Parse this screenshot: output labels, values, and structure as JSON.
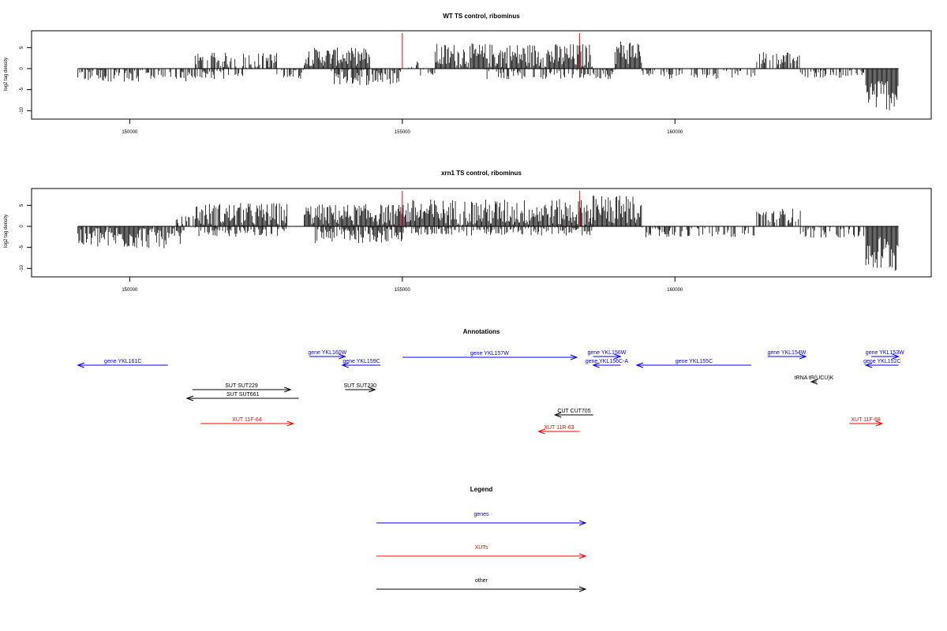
{
  "chart_data": [
    {
      "type": "bar",
      "title": "WT TS control, ribominus",
      "ylabel": "log2 tag density",
      "xlim": [
        148200,
        164700
      ],
      "ylim": [
        -12,
        9
      ],
      "x_ticks": [
        150000,
        155000,
        160000
      ],
      "y_ticks": [
        5,
        0,
        -5,
        -10
      ],
      "markers": [
        155000,
        158250
      ],
      "segments": [
        {
          "from": 149050,
          "to": 152100,
          "mean": -1.5,
          "amp": 1.6
        },
        {
          "from": 151200,
          "to": 152700,
          "mean": 2.0,
          "amp": 1.8
        },
        {
          "from": 152700,
          "to": 153200,
          "mean": -1.0,
          "amp": 1.5
        },
        {
          "from": 153200,
          "to": 154400,
          "mean": 2.8,
          "amp": 2.2
        },
        {
          "from": 153700,
          "to": 155000,
          "mean": -1.5,
          "amp": 2.5
        },
        {
          "from": 155100,
          "to": 155300,
          "mean": 1.0,
          "amp": 1.0
        },
        {
          "from": 155300,
          "to": 155600,
          "mean": -1.0,
          "amp": 1.0
        },
        {
          "from": 155600,
          "to": 158500,
          "mean": 3.0,
          "amp": 3.0
        },
        {
          "from": 156500,
          "to": 158500,
          "mean": -1.0,
          "amp": 1.5
        },
        {
          "from": 158500,
          "to": 158900,
          "mean": -1.0,
          "amp": 1.5
        },
        {
          "from": 158900,
          "to": 159400,
          "mean": 4.0,
          "amp": 3.0
        },
        {
          "from": 159400,
          "to": 161500,
          "mean": -1.0,
          "amp": 1.5
        },
        {
          "from": 161500,
          "to": 162300,
          "mean": 2.5,
          "amp": 1.5
        },
        {
          "from": 162300,
          "to": 163500,
          "mean": -1.0,
          "amp": 1.2
        },
        {
          "from": 163500,
          "to": 164100,
          "mean": -6.0,
          "amp": 4.0
        }
      ]
    },
    {
      "type": "bar",
      "title": "xrn1 TS control, ribominus",
      "ylabel": "log2 tag density",
      "xlim": [
        148200,
        164700
      ],
      "ylim": [
        -12,
        9
      ],
      "x_ticks": [
        150000,
        155000,
        160000
      ],
      "y_ticks": [
        5,
        0,
        -5,
        -10
      ],
      "markers": [
        155000,
        158250
      ],
      "segments": [
        {
          "from": 149050,
          "to": 151000,
          "mean": -2.5,
          "amp": 2.8
        },
        {
          "from": 150800,
          "to": 151200,
          "mean": 1.5,
          "amp": 1.0
        },
        {
          "from": 151200,
          "to": 152900,
          "mean": 2.8,
          "amp": 2.8
        },
        {
          "from": 151200,
          "to": 152900,
          "mean": -1.0,
          "amp": 1.5
        },
        {
          "from": 153200,
          "to": 155000,
          "mean": 2.8,
          "amp": 2.5
        },
        {
          "from": 153400,
          "to": 155000,
          "mean": -1.5,
          "amp": 2.5
        },
        {
          "from": 155000,
          "to": 158500,
          "mean": 3.3,
          "amp": 3.2
        },
        {
          "from": 155000,
          "to": 158500,
          "mean": -1.0,
          "amp": 1.2
        },
        {
          "from": 158500,
          "to": 159400,
          "mean": 4.0,
          "amp": 3.5
        },
        {
          "from": 159400,
          "to": 161500,
          "mean": -1.0,
          "amp": 1.6
        },
        {
          "from": 161500,
          "to": 162300,
          "mean": 2.5,
          "amp": 1.8
        },
        {
          "from": 162300,
          "to": 163500,
          "mean": -1.2,
          "amp": 1.5
        },
        {
          "from": 163500,
          "to": 164100,
          "mean": -6.5,
          "amp": 4.5
        }
      ]
    }
  ],
  "annotations": {
    "title": "Annotations",
    "features": [
      {
        "label": "gene YKL161C",
        "from": 150700,
        "to": 149050,
        "kind": "gene"
      },
      {
        "label": "gene YKL160W",
        "from": 153300,
        "to": 153950,
        "kind": "gene"
      },
      {
        "label": "gene YKL159C",
        "from": 154600,
        "to": 153900,
        "kind": "gene"
      },
      {
        "label": "gene YKL157W",
        "from": 155000,
        "to": 158200,
        "kind": "gene"
      },
      {
        "label": "gene YKL156W",
        "from": 158500,
        "to": 159000,
        "kind": "gene"
      },
      {
        "label": "gene YKL156C-A",
        "from": 159000,
        "to": 158500,
        "kind": "gene"
      },
      {
        "label": "gene YKL155C",
        "from": 161400,
        "to": 159300,
        "kind": "gene"
      },
      {
        "label": "gene YKL154W",
        "from": 161700,
        "to": 162400,
        "kind": "gene"
      },
      {
        "label": "gene YKL153W",
        "from": 163600,
        "to": 164100,
        "kind": "gene"
      },
      {
        "label": "gene YKL152C",
        "from": 164100,
        "to": 163500,
        "kind": "gene"
      },
      {
        "label": "SUT SUT229",
        "from": 151150,
        "to": 152950,
        "kind": "other"
      },
      {
        "label": "SUT SUT661",
        "from": 153100,
        "to": 151050,
        "kind": "other"
      },
      {
        "label": "SUT SUT230",
        "from": 153950,
        "to": 154500,
        "kind": "other"
      },
      {
        "label": "tRNA tR(UCU)K",
        "from": 162600,
        "to": 162500,
        "kind": "other"
      },
      {
        "label": "CUT CUT705",
        "from": 158500,
        "to": 157800,
        "kind": "other"
      },
      {
        "label": "XUT 11F-64",
        "from": 151300,
        "to": 153000,
        "kind": "xut"
      },
      {
        "label": "XUT 11R-63",
        "from": 158250,
        "to": 157500,
        "kind": "xut"
      },
      {
        "label": "XUT 11F-68",
        "from": 163200,
        "to": 163800,
        "kind": "xut"
      }
    ]
  },
  "legend": {
    "title": "Legend",
    "items": [
      {
        "label": "genes",
        "kind": "gene"
      },
      {
        "label": "XUTs",
        "kind": "xut"
      },
      {
        "label": "other",
        "kind": "other"
      }
    ]
  },
  "colors": {
    "gene": "#0000ff",
    "xut": "#ff0000",
    "other": "#000000",
    "marker": "#ff0000",
    "signal": "#000000"
  }
}
